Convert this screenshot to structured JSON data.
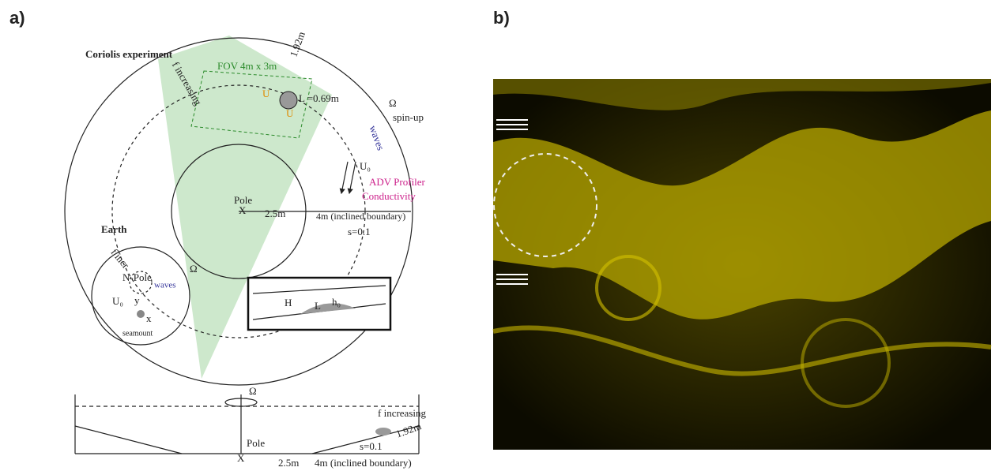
{
  "panel_a": {
    "label": "a)",
    "top_view": {
      "title": "Coriolis experiment",
      "f_label": "f increasing",
      "fov": "FOV 4m x 3m",
      "fov_size": "1.92m",
      "obstacle_size": "L =0.69m",
      "u_top": "U",
      "u_bottom": "U",
      "omega": "Ω",
      "spin_up": "spin-up",
      "waves": "waves",
      "u0": "U₀",
      "adv": "ADV Profiler",
      "conductivity": "Conductivity",
      "pole": "Pole",
      "pole_x": "X",
      "inner_radius": "2.5m",
      "outer_width": "4m (inclined boundary)",
      "slope": "s=0.1",
      "omega_inner": "Ω"
    },
    "earth": {
      "title": "Earth",
      "f_label": "f incr",
      "n_pole": "N-Pole",
      "waves": "waves",
      "u0": "U₀",
      "y": "y",
      "x": "x",
      "seamount": "seamount"
    },
    "inset": {
      "h": "H",
      "l": "L",
      "h0": "h₀"
    },
    "cross_section": {
      "omega": "Ω",
      "f_label": "f increasing",
      "size": "1.92m",
      "slope": "s=0.1",
      "pole": "Pole",
      "pole_x": "X",
      "inner_radius": "2.5m",
      "outer_width": "4m (inclined boundary)"
    }
  },
  "panel_b": {
    "label": "b)"
  }
}
